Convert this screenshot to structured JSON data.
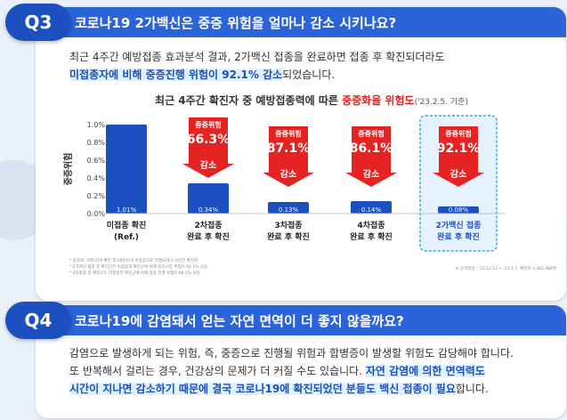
{
  "q3": {
    "badge": "Q3",
    "title": "코로나19 2가백신은 중증 위험을 얼마나 감소 시키나요?",
    "intro_line1": "최근 4주간 예방접종 효과분석 결과, 2가백신 접종을 완료하면 접종 후 확진되더라도",
    "intro_highlight": "미접종자에 비해 중증진행 위험이 92.1% 감소",
    "intro_tail": "되었습니다.",
    "chart_title_main": "최근 4주간 확진자 중 예방접종력에 따른 ",
    "chart_title_red": "중증화율 위험도",
    "chart_title_date": "('23.2.5. 기준)",
    "footnotes": [
      "* 중증화: 코로나19 확진 후 28일이내 위중증으로 진행되거나 사망한 확진자",
      "* 2가백신 접종 후 확진군은 미접종과 확진군에 비해 중증시망 위험이 92.1% 낮음",
      "* 4차접종 후 확진군도 미접종자 확진군에 비해 중증 진행 위험이 86.1% 낮음"
    ],
    "source": "※ 분석대상 : '22.12.11 ~ '23.1.7. 확진자 3,462,488명"
  },
  "chart_data": {
    "type": "bar",
    "ylabel": "중증위험",
    "ylim": [
      0,
      1.0
    ],
    "yticks": [
      "1.0%",
      "0.8%",
      "0.6%",
      "0.4%",
      "0.2%",
      "0.0%"
    ],
    "categories": [
      [
        "미접종 확진",
        "(Ref.)"
      ],
      [
        "2차접종",
        "완료 후 확진"
      ],
      [
        "3차접종",
        "완료 후 확진"
      ],
      [
        "4차접종",
        "완료 후 확진"
      ],
      [
        "2가백신 접종",
        "완료 후 확진"
      ]
    ],
    "values": [
      1.01,
      0.34,
      0.13,
      0.14,
      0.08
    ],
    "value_labels": [
      "1.01%",
      "0.34%",
      "0.13%",
      "0.14%",
      "0.08%"
    ],
    "reductions": [
      null,
      "66.3%",
      "87.1%",
      "86.1%",
      "92.1%"
    ],
    "reduction_top_label": "중증위험",
    "reduction_bottom_label": "감소",
    "highlight_index": 4,
    "colors": {
      "bar": "#1c4fbf",
      "arrow": "#e52323",
      "highlight_bg": "#e6f3ff",
      "highlight_border": "#35a8e0"
    }
  },
  "q4": {
    "badge": "Q4",
    "title": "코로나19에 감염돼서 얻는 자연 면역이 더 좋지 않을까요?",
    "line1": "감염으로 발생하게 되는 위험, 즉, 중증으로 진행될 위험과 합병증이 발생할 위험도 감당해야 합니다.",
    "line2_plain": "또 반복해서 걸리는 경우, 건강상의 문제가 더 커질 수도 있습니다. ",
    "line2_highlight": "자연 감염에 의한 면역력도",
    "line3_highlight": "시간이 지나면 감소하기 때문에 결국 코로나19에 확진되었던 분들도 백신 접종이 필요",
    "line3_tail": "합니다."
  }
}
